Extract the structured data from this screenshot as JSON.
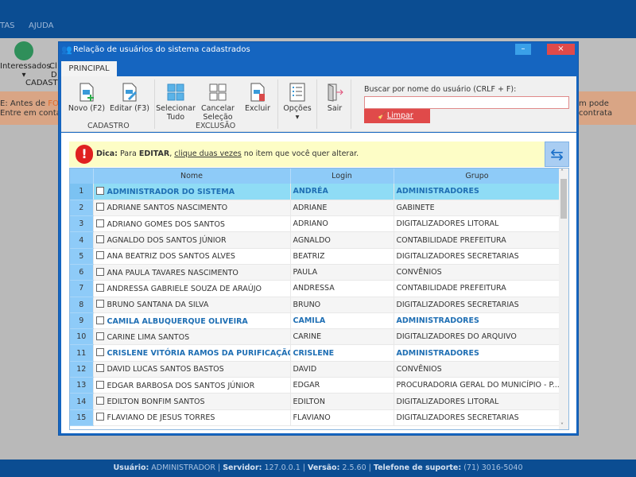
{
  "app": {
    "menu": [
      "TAS",
      "AJUDA"
    ],
    "toolbar": {
      "interessados": "Interessados",
      "partial1": "Cl",
      "partial2": "D",
      "cadastro": "CADASTI"
    },
    "banner": {
      "line1_pre": "E: Antes de ",
      "line1_hl": "FOR",
      "line2": "Entre em contato",
      "right": "m pode contrata"
    }
  },
  "dialog": {
    "title": "Relação de usuários do sistema cadastrados",
    "minimize": "–",
    "close": "×",
    "tab": "PRINCIPAL",
    "ribbon": {
      "novo": "Novo (F2)",
      "editar": "Editar (F3)",
      "cadastro_group": "CADASTRO",
      "selecionar": "Selecionar Tudo",
      "cancelar": "Cancelar Seleção",
      "excluir": "Excluir",
      "exclusao_group": "EXCLUSÃO",
      "opcoes": "Opções",
      "sair": "Sair",
      "search_label": "Buscar por nome do usuário (CRLF + F):",
      "search_value": "",
      "limpar": "Limpar"
    },
    "tip": {
      "prefix": "Dica:",
      "t1": " Para ",
      "edit": "EDITAR",
      "t2": ", ",
      "link": "clique duas vezes",
      "t3": " no item que você quer alterar."
    },
    "grid": {
      "columns": [
        "Nome",
        "Login",
        "Grupo"
      ],
      "rows": [
        {
          "n": "1",
          "nome": "ADMINISTRADOR DO SISTEMA",
          "login": "ANDRÉA",
          "grupo": "ADMINISTRADORES",
          "admin": true,
          "selected": true
        },
        {
          "n": "2",
          "nome": "ADRIANE SANTOS NASCIMENTO",
          "login": "ADRIANE",
          "grupo": "GABINETE"
        },
        {
          "n": "3",
          "nome": "ADRIANO GOMES DOS SANTOS",
          "login": "ADRIANO",
          "grupo": "DIGITALIZADORES LITORAL"
        },
        {
          "n": "4",
          "nome": "AGNALDO DOS SANTOS JÚNIOR",
          "login": "AGNALDO",
          "grupo": "CONTABILIDADE PREFEITURA"
        },
        {
          "n": "5",
          "nome": "ANA BEATRIZ DOS SANTOS ALVES",
          "login": "BEATRIZ",
          "grupo": "DIGITALIZADORES SECRETARIAS"
        },
        {
          "n": "6",
          "nome": "ANA PAULA TAVARES NASCIMENTO",
          "login": "PAULA",
          "grupo": "CONVÊNIOS"
        },
        {
          "n": "7",
          "nome": "ANDRESSA GABRIELE SOUZA DE ARAÚJO",
          "login": "ANDRESSA",
          "grupo": "CONTABILIDADE PREFEITURA"
        },
        {
          "n": "8",
          "nome": "BRUNO SANTANA DA SILVA",
          "login": "BRUNO",
          "grupo": "DIGITALIZADORES SECRETARIAS"
        },
        {
          "n": "9",
          "nome": "CAMILA ALBUQUERQUE OLIVEIRA",
          "login": "CAMILA",
          "grupo": "ADMINISTRADORES",
          "admin": true
        },
        {
          "n": "10",
          "nome": "CARINE LIMA SANTOS",
          "login": "CARINE",
          "grupo": "DIGITALIZADORES DO ARQUIVO"
        },
        {
          "n": "11",
          "nome": "CRISLENE VITÓRIA RAMOS DA PURIFICAÇÃO",
          "login": "CRISLENE",
          "grupo": "ADMINISTRADORES",
          "admin": true
        },
        {
          "n": "12",
          "nome": "DAVID LUCAS SANTOS BASTOS",
          "login": "DAVID",
          "grupo": "CONVÊNIOS"
        },
        {
          "n": "13",
          "nome": "EDGAR BARBOSA DOS SANTOS JÚNIOR",
          "login": "EDGAR",
          "grupo": "PROCURADORIA GERAL DO MUNICÍPIO - P..."
        },
        {
          "n": "14",
          "nome": "EDILTON BONFIM SANTOS",
          "login": "EDILTON",
          "grupo": "DIGITALIZADORES LITORAL"
        },
        {
          "n": "15",
          "nome": "FLAVIANO DE JESUS TORRES",
          "login": "FLAVIANO",
          "grupo": "DIGITALIZADORES SECRETARIAS"
        }
      ]
    }
  },
  "status": {
    "usuario_label": "Usuário:",
    "usuario": " ADMINISTRADOR | ",
    "servidor_label": "Servidor:",
    "servidor": " 127.0.0.1 | ",
    "versao_label": "Versão:",
    "versao": " 2.5.60 | ",
    "telefone_label": "Telefone de suporte:",
    "telefone": " (71) 3016-5040"
  },
  "colors": {
    "header_blue": "#0b4d92",
    "dialog_blue": "#1565c0",
    "limpar_red": "#e04a4a",
    "admin_text": "#1f6fb4",
    "selected_row": "#8fdcf5"
  }
}
